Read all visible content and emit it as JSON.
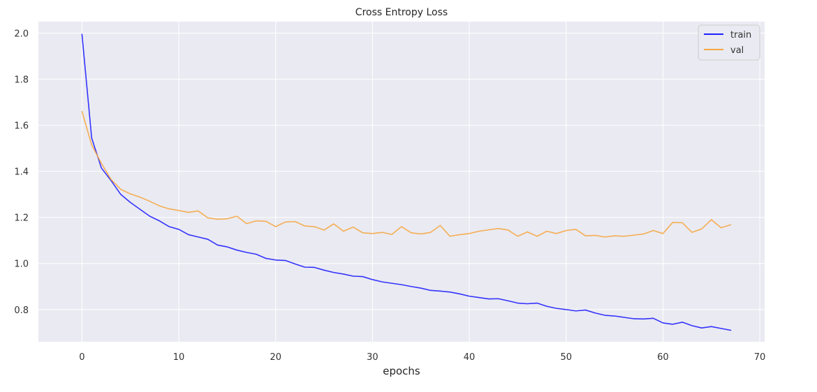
{
  "chart_data": {
    "type": "line",
    "title": "Cross Entropy Loss",
    "xlabel": "epochs",
    "ylabel": "",
    "xlim": [
      -4.5,
      70.5
    ],
    "ylim": [
      0.66,
      2.05
    ],
    "xticks": [
      0,
      10,
      20,
      30,
      40,
      50,
      60,
      70
    ],
    "yticks": [
      0.8,
      1.0,
      1.2,
      1.4,
      1.6,
      1.8,
      2.0
    ],
    "xtick_labels": [
      "0",
      "10",
      "20",
      "30",
      "40",
      "50",
      "60",
      "70"
    ],
    "ytick_labels": [
      "0.8",
      "1.0",
      "1.2",
      "1.4",
      "1.6",
      "1.8",
      "2.0"
    ],
    "grid": true,
    "legend_position": "top-right",
    "colors": {
      "background": "#eaeaf2",
      "grid": "#ffffff",
      "train": "#1f1fff",
      "val": "#f5a742"
    },
    "x": [
      0,
      1,
      2,
      3,
      4,
      5,
      6,
      7,
      8,
      9,
      10,
      11,
      12,
      13,
      14,
      15,
      16,
      17,
      18,
      19,
      20,
      21,
      22,
      23,
      24,
      25,
      26,
      27,
      28,
      29,
      30,
      31,
      32,
      33,
      34,
      35,
      36,
      37,
      38,
      39,
      40,
      41,
      42,
      43,
      44,
      45,
      46,
      47,
      48,
      49,
      50,
      51,
      52,
      53,
      54,
      55,
      56,
      57,
      58,
      59,
      60,
      61,
      62,
      63,
      64,
      65,
      66,
      67
    ],
    "series": [
      {
        "name": "train",
        "color": "#1f1fff",
        "values": [
          1.995,
          1.545,
          1.415,
          1.36,
          1.3,
          1.265,
          1.235,
          1.205,
          1.185,
          1.16,
          1.148,
          1.125,
          1.115,
          1.105,
          1.08,
          1.072,
          1.058,
          1.048,
          1.04,
          1.022,
          1.015,
          1.013,
          0.998,
          0.984,
          0.983,
          0.971,
          0.961,
          0.954,
          0.945,
          0.943,
          0.93,
          0.92,
          0.914,
          0.908,
          0.9,
          0.893,
          0.883,
          0.88,
          0.876,
          0.868,
          0.858,
          0.852,
          0.846,
          0.847,
          0.838,
          0.828,
          0.825,
          0.828,
          0.814,
          0.805,
          0.8,
          0.794,
          0.798,
          0.785,
          0.775,
          0.772,
          0.766,
          0.76,
          0.759,
          0.762,
          0.742,
          0.736,
          0.745,
          0.73,
          0.72,
          0.726,
          0.718,
          0.71
        ]
      },
      {
        "name": "val",
        "color": "#f5a742",
        "values": [
          1.66,
          1.515,
          1.435,
          1.365,
          1.322,
          1.302,
          1.288,
          1.27,
          1.25,
          1.237,
          1.23,
          1.222,
          1.228,
          1.198,
          1.192,
          1.194,
          1.205,
          1.173,
          1.185,
          1.183,
          1.16,
          1.18,
          1.182,
          1.163,
          1.16,
          1.145,
          1.172,
          1.14,
          1.158,
          1.133,
          1.13,
          1.135,
          1.126,
          1.16,
          1.133,
          1.128,
          1.135,
          1.165,
          1.118,
          1.125,
          1.13,
          1.14,
          1.146,
          1.152,
          1.145,
          1.118,
          1.137,
          1.118,
          1.14,
          1.13,
          1.143,
          1.148,
          1.12,
          1.122,
          1.115,
          1.12,
          1.118,
          1.123,
          1.128,
          1.143,
          1.13,
          1.178,
          1.177,
          1.135,
          1.15,
          1.19,
          1.155,
          1.168
        ]
      }
    ]
  }
}
